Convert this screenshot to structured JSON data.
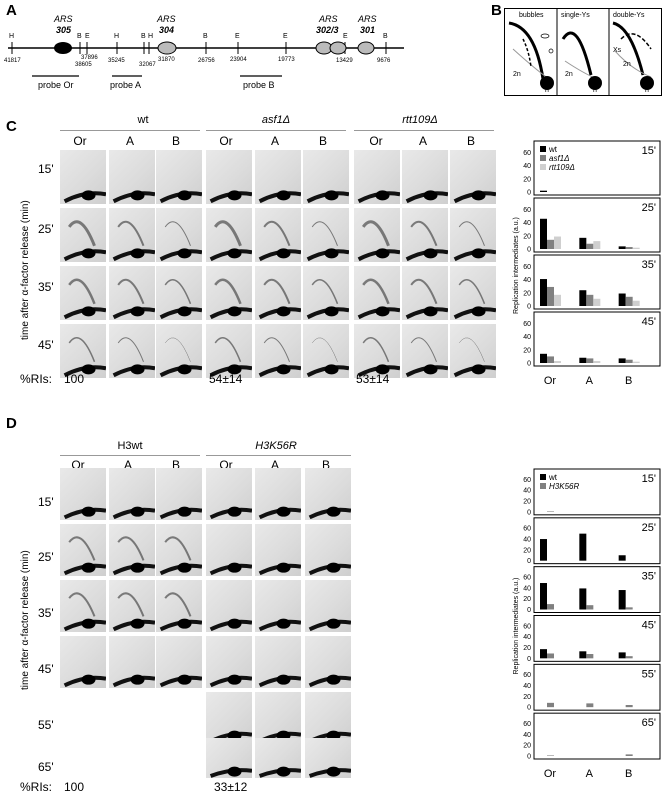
{
  "panels": {
    "a": "A",
    "b": "B",
    "c": "C",
    "d": "D"
  },
  "map": {
    "ars_labels": [
      "ARS\n305",
      "ARS\n304",
      "ARS\n302/3",
      "ARS\n301"
    ],
    "ars305_l1": "ARS",
    "ars305_l2": "305",
    "ars304_l1": "ARS",
    "ars304_l2": "304",
    "ars3023_l1": "ARS",
    "ars3023_l2": "302/3",
    "ars301_l1": "ARS",
    "ars301_l2": "301",
    "site_letters": [
      "H",
      "B",
      "E",
      "H",
      "B",
      "H",
      "B",
      "E",
      "E",
      "E",
      "B"
    ],
    "coords": [
      "41817",
      "37896",
      "38605",
      "35245",
      "32067",
      "31870",
      "26756",
      "23904",
      "19773",
      "13429",
      "9676"
    ],
    "probes": [
      "probe Or",
      "probe A",
      "probe B"
    ]
  },
  "schematic": {
    "bubbles": "bubbles",
    "single_ys": "single-Ys",
    "double_ys": "double-Ys",
    "xs": "Xs",
    "two_n": "2n",
    "n": "n"
  },
  "panel_c": {
    "groups": [
      "wt",
      "asf1Δ",
      "rtt109Δ"
    ],
    "cols": [
      "Or",
      "A",
      "B"
    ],
    "times": [
      "15'",
      "25'",
      "35'",
      "45'"
    ],
    "yaxis": "time after α-factor release (min)",
    "ri_label": "%RIs:",
    "ri_values": [
      "100",
      "54±14",
      "53±14"
    ]
  },
  "panel_d": {
    "groups": [
      "H3wt",
      "H3K56R"
    ],
    "cols": [
      "Or",
      "A",
      "B"
    ],
    "times": [
      "15'",
      "25'",
      "35'",
      "45'",
      "55'",
      "65'"
    ],
    "yaxis": "time after α-factor release (min)",
    "ri_label": "%RIs:",
    "ri_values": [
      "100",
      "33±12"
    ]
  },
  "chart_data": [
    {
      "type": "bar",
      "ylabel": "Replication intermediates (a.u.)",
      "categories": [
        "Or",
        "A",
        "B"
      ],
      "ylim": [
        0,
        70
      ],
      "yticks": [
        0,
        20,
        40,
        60
      ],
      "legend": [
        "wt",
        "asf1Δ",
        "rtt109Δ"
      ],
      "colors": [
        "#000000",
        "#808080",
        "#cfcfcf"
      ],
      "panels": [
        {
          "time": "15'",
          "series": [
            {
              "name": "wt",
              "values": [
                2,
                0,
                0
              ]
            },
            {
              "name": "asf1Δ",
              "values": [
                0,
                0,
                0
              ]
            },
            {
              "name": "rtt109Δ",
              "values": [
                0,
                0,
                0
              ]
            }
          ]
        },
        {
          "time": "25'",
          "series": [
            {
              "name": "wt",
              "values": [
                46,
                17,
                4
              ]
            },
            {
              "name": "asf1Δ",
              "values": [
                14,
                8,
                3
              ]
            },
            {
              "name": "rtt109Δ",
              "values": [
                19,
                12,
                2
              ]
            }
          ]
        },
        {
          "time": "35'",
          "series": [
            {
              "name": "wt",
              "values": [
                41,
                24,
                19
              ]
            },
            {
              "name": "asf1Δ",
              "values": [
                29,
                17,
                14
              ]
            },
            {
              "name": "rtt109Δ",
              "values": [
                17,
                11,
                8
              ]
            }
          ]
        },
        {
          "time": "45'",
          "series": [
            {
              "name": "wt",
              "values": [
                14,
                8,
                7
              ]
            },
            {
              "name": "asf1Δ",
              "values": [
                10,
                7,
                5
              ]
            },
            {
              "name": "rtt109Δ",
              "values": [
                3,
                3,
                2
              ]
            }
          ]
        }
      ]
    },
    {
      "type": "bar",
      "ylabel": "Replication intermediates (a.u.)",
      "categories": [
        "Or",
        "A",
        "B"
      ],
      "ylim": [
        0,
        70
      ],
      "yticks": [
        0,
        20,
        40,
        60
      ],
      "legend": [
        "wt",
        "H3K56R"
      ],
      "colors": [
        "#000000",
        "#808080"
      ],
      "panels": [
        {
          "time": "15'",
          "series": [
            {
              "name": "wt",
              "values": [
                0,
                0,
                0
              ]
            },
            {
              "name": "H3K56R",
              "values": [
                1,
                0,
                0
              ]
            }
          ]
        },
        {
          "time": "25'",
          "series": [
            {
              "name": "wt",
              "values": [
                40,
                50,
                10
              ]
            },
            {
              "name": "H3K56R",
              "values": [
                0,
                0,
                0
              ]
            }
          ]
        },
        {
          "time": "35'",
          "series": [
            {
              "name": "wt",
              "values": [
                49,
                39,
                36
              ]
            },
            {
              "name": "H3K56R",
              "values": [
                10,
                8,
                4
              ]
            }
          ]
        },
        {
          "time": "45'",
          "series": [
            {
              "name": "wt",
              "values": [
                17,
                13,
                11
              ]
            },
            {
              "name": "H3K56R",
              "values": [
                9,
                8,
                4
              ]
            }
          ]
        },
        {
          "time": "55'",
          "series": [
            {
              "name": "wt",
              "values": [
                0,
                0,
                0
              ]
            },
            {
              "name": "H3K56R",
              "values": [
                8,
                7,
                4
              ]
            }
          ]
        },
        {
          "time": "65'",
          "series": [
            {
              "name": "wt",
              "values": [
                0,
                0,
                0
              ]
            },
            {
              "name": "H3K56R",
              "values": [
                1,
                0,
                3
              ]
            }
          ]
        }
      ]
    }
  ]
}
